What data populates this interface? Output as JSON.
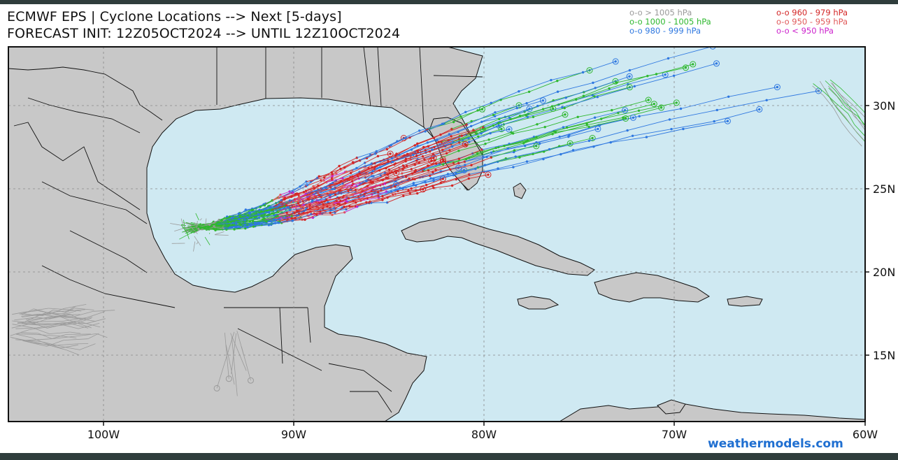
{
  "title": {
    "line1": "ECMWF EPS | Cyclone Locations --> Next [5-days]",
    "line2": "FORECAST INIT: 12Z05OCT2024 --> UNTIL 12Z10OCT2024"
  },
  "legend": {
    "items": [
      {
        "label": "o-o > 1005 hPa",
        "color": "#9a9a9a"
      },
      {
        "label": "o-o 1000 - 1005 hPa",
        "color": "#2fb82f"
      },
      {
        "label": "o-o 980 - 999 hPa",
        "color": "#2f78e0"
      },
      {
        "label": "o-o 960 - 979 hPa",
        "color": "#d32626"
      },
      {
        "label": "o-o 950 - 959 hPa",
        "color": "#e05a5a"
      },
      {
        "label": "o-o < 950 hPa",
        "color": "#cc22cc"
      }
    ]
  },
  "axes": {
    "lat_labels": [
      "30N",
      "25N",
      "20N",
      "15N"
    ],
    "lon_labels": [
      "100W",
      "90W",
      "80W",
      "70W",
      "60W"
    ]
  },
  "credit": "weathermodels.com",
  "colors": {
    "ocean": "#cfe9f2",
    "land": "#c8c8c8",
    "frame": "#2f3d3c"
  }
}
